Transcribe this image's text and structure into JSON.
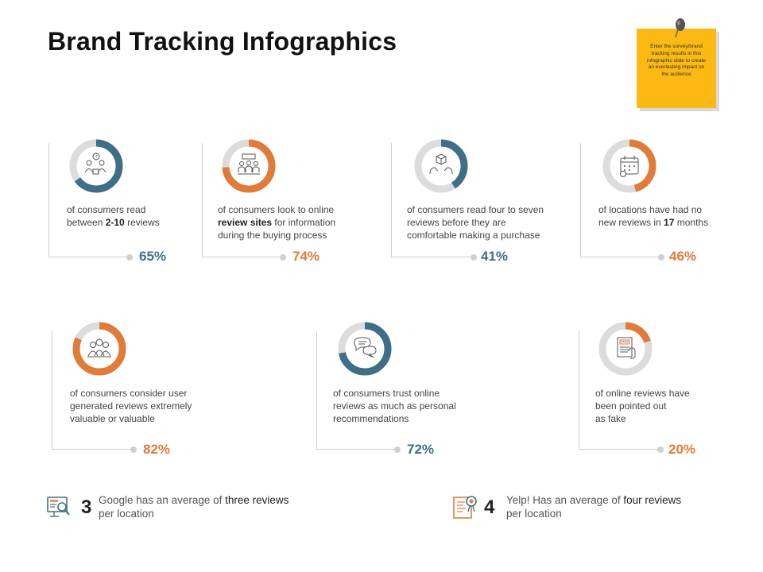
{
  "title": "Brand Tracking Infographics",
  "note": {
    "text": "Enter the survey/brand tracking results in this infographic slide to create an everlasting impact on the audience",
    "color": "#fdb913"
  },
  "colors": {
    "blue": "#3e6f87",
    "orange": "#e07b39",
    "ring_bg": "#dcdcdc"
  },
  "cards": [
    {
      "id": "c1",
      "percent": 65,
      "label": "65%",
      "accent": "blue",
      "icon": "people-question-icon",
      "text": [
        [
          "of consumers read",
          ""
        ],
        [
          "between ",
          ""
        ],
        [
          "2-10",
          "b"
        ],
        [
          " reviews",
          ""
        ]
      ]
    },
    {
      "id": "c2",
      "percent": 74,
      "label": "74%",
      "accent": "orange",
      "icon": "team-meeting-icon",
      "text": [
        [
          "of consumers look to online",
          ""
        ],
        [
          "review  sites",
          "b"
        ],
        [
          " for information",
          ""
        ],
        [
          "during the buying process",
          ""
        ]
      ]
    },
    {
      "id": "c3",
      "percent": 41,
      "label": "41%",
      "accent": "blue",
      "icon": "box-hands-icon",
      "text": [
        [
          "of consumers read four to seven",
          ""
        ],
        [
          "reviews  before they are",
          ""
        ],
        [
          "comfortable  making a purchase",
          ""
        ]
      ]
    },
    {
      "id": "c4",
      "percent": 46,
      "label": "46%",
      "accent": "orange",
      "icon": "calendar-icon",
      "text": [
        [
          "of locations have had no",
          ""
        ],
        [
          "new reviews  in ",
          ""
        ],
        [
          "17",
          "b"
        ],
        [
          " months",
          ""
        ]
      ]
    },
    {
      "id": "c5",
      "percent": 82,
      "label": "82%",
      "accent": "orange",
      "icon": "user-group-icon",
      "text": [
        [
          "of consumers consider user",
          ""
        ],
        [
          "generated reviews  extremely",
          ""
        ],
        [
          "valuable  or valuable",
          ""
        ]
      ]
    },
    {
      "id": "c6",
      "percent": 72,
      "label": "72%",
      "accent": "blue",
      "icon": "chat-bubbles-icon",
      "text": [
        [
          "of consumers trust online",
          ""
        ],
        [
          "reviews  as much as personal",
          ""
        ],
        [
          "recommendations",
          ""
        ]
      ]
    },
    {
      "id": "c7",
      "percent": 20,
      "label": "20%",
      "accent": "orange",
      "icon": "fake-document-icon",
      "text": [
        [
          "of online reviews have",
          ""
        ],
        [
          "been pointed out",
          ""
        ],
        [
          "as fake",
          ""
        ]
      ]
    }
  ],
  "bottom": [
    {
      "number": "3",
      "line1_a": "Google has an average of ",
      "line1_b": "three reviews",
      "line2": "per location",
      "icon": "monitor-search-icon"
    },
    {
      "number": "4",
      "line1_a": "Yelp! Has an average of ",
      "line1_b": "four reviews",
      "line2": "per location",
      "icon": "document-award-icon"
    }
  ]
}
